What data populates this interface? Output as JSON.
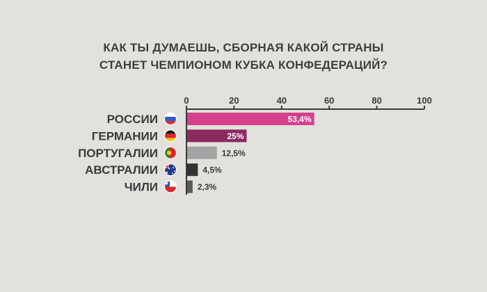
{
  "header": {
    "line1": "КАК ТЫ ДУМАЕШЬ, СБОРНАЯ КАКОЙ СТРАНЫ",
    "line2": "СТАНЕТ ЧЕМПИОНОМ КУБКА КОНФЕДЕРАЦИЙ?"
  },
  "chart_data": {
    "type": "bar",
    "orientation": "horizontal",
    "title": "КАК ТЫ ДУМАЕШЬ, СБОРНАЯ КАКОЙ СТРАНЫ СТАНЕТ ЧЕМПИОНОМ КУБКА КОНФЕДЕРАЦИЙ?",
    "xlim": [
      0,
      100
    ],
    "ticks": [
      0,
      20,
      40,
      60,
      80,
      100
    ],
    "tick_labels": [
      "0",
      "20",
      "40",
      "60",
      "80",
      "100"
    ],
    "grid": false,
    "axis_position": "top",
    "categories": [
      "РОССИИ",
      "ГЕРМАНИИ",
      "ПОРТУГАЛИИ",
      "АВСТРАЛИИ",
      "ЧИЛИ"
    ],
    "values": [
      53.4,
      25,
      12.5,
      4.5,
      2.3
    ],
    "value_labels": [
      "53,4%",
      "25%",
      "12,5%",
      "4,5%",
      "2,3%"
    ],
    "bar_colors": [
      "#d63f8c",
      "#8b2a5f",
      "#a3a3a3",
      "#333333",
      "#5a5a5a"
    ],
    "label_inside": [
      true,
      true,
      false,
      false,
      false
    ],
    "flags": [
      "russia-flag",
      "germany-flag",
      "portugal-flag",
      "australia-flag",
      "chile-flag"
    ]
  }
}
